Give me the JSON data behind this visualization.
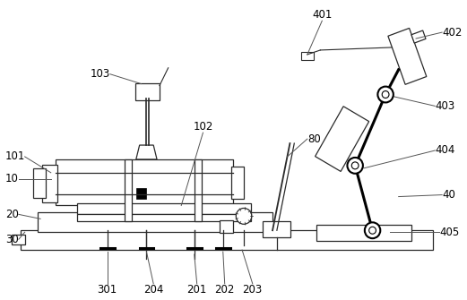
{
  "bg_color": "#ffffff",
  "line_color": "#2a2a2a",
  "fig_width": 5.21,
  "fig_height": 3.35,
  "dpi": 100,
  "label_fs": 8.5
}
